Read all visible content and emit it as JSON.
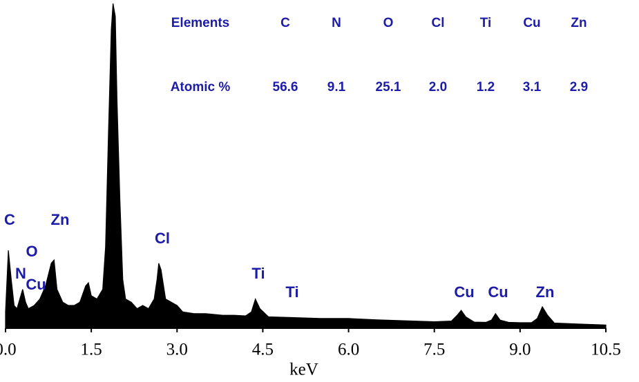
{
  "chart_data": {
    "type": "area",
    "x": [
      0,
      0.05,
      0.1,
      0.15,
      0.2,
      0.25,
      0.3,
      0.35,
      0.4,
      0.5,
      0.6,
      0.7,
      0.8,
      0.85,
      0.9,
      1.0,
      1.1,
      1.2,
      1.3,
      1.4,
      1.45,
      1.5,
      1.6,
      1.7,
      1.75,
      1.8,
      1.85,
      1.88,
      1.92,
      1.95,
      2.0,
      2.05,
      2.1,
      2.2,
      2.3,
      2.4,
      2.5,
      2.6,
      2.65,
      2.68,
      2.72,
      2.8,
      2.9,
      3.0,
      3.1,
      3.3,
      3.5,
      3.8,
      4.0,
      4.2,
      4.3,
      4.37,
      4.45,
      4.6,
      5.0,
      5.5,
      6.0,
      6.5,
      7.0,
      7.5,
      7.8,
      7.9,
      7.97,
      8.05,
      8.2,
      8.4,
      8.5,
      8.57,
      8.65,
      8.8,
      9.0,
      9.2,
      9.3,
      9.39,
      9.48,
      9.6,
      10.0,
      10.5
    ],
    "values": [
      5,
      24,
      15,
      7,
      6,
      9,
      12,
      8,
      6,
      7,
      9,
      13,
      20,
      21,
      12,
      8,
      7,
      7,
      8,
      13,
      14,
      10,
      9,
      12,
      25,
      60,
      92,
      100,
      96,
      70,
      40,
      15,
      9,
      8,
      6,
      7,
      6,
      9,
      15,
      20,
      18,
      9,
      8,
      7,
      5,
      4.5,
      4.5,
      4,
      4,
      3.8,
      5,
      9,
      6,
      3.5,
      3.3,
      3,
      3,
      2.6,
      2.3,
      2,
      2.2,
      4,
      5.5,
      3.5,
      1.9,
      1.8,
      2.5,
      4.5,
      2.5,
      1.8,
      1.7,
      1.7,
      3,
      6.6,
      4,
      1.6,
      1.3,
      1.0
    ],
    "color": "#000000",
    "xlim": [
      0,
      10.5
    ],
    "ylim": [
      0,
      100
    ],
    "xticks": [
      {
        "value": 0,
        "label": "0.0"
      },
      1.5,
      {
        "value": 3,
        "label": "3.0"
      },
      4.5,
      {
        "value": 6,
        "label": "6.0"
      },
      7.5,
      {
        "value": 9,
        "label": "9.0"
      },
      10.5
    ],
    "xlabel": "keV",
    "annotations": [
      "C",
      "Zn",
      "O",
      "Cl",
      "N",
      "Cu",
      "Ti",
      "Ti",
      "Cu",
      "Cu",
      "Zn"
    ],
    "table": {
      "header": [
        "Elements",
        "C",
        "N",
        "O",
        "Cl",
        "Ti",
        "Cu",
        "Zn"
      ],
      "row": [
        "Atomic %",
        "56.6",
        "9.1",
        "25.1",
        "2.0",
        "1.2",
        "3.1",
        "2.9"
      ]
    }
  }
}
